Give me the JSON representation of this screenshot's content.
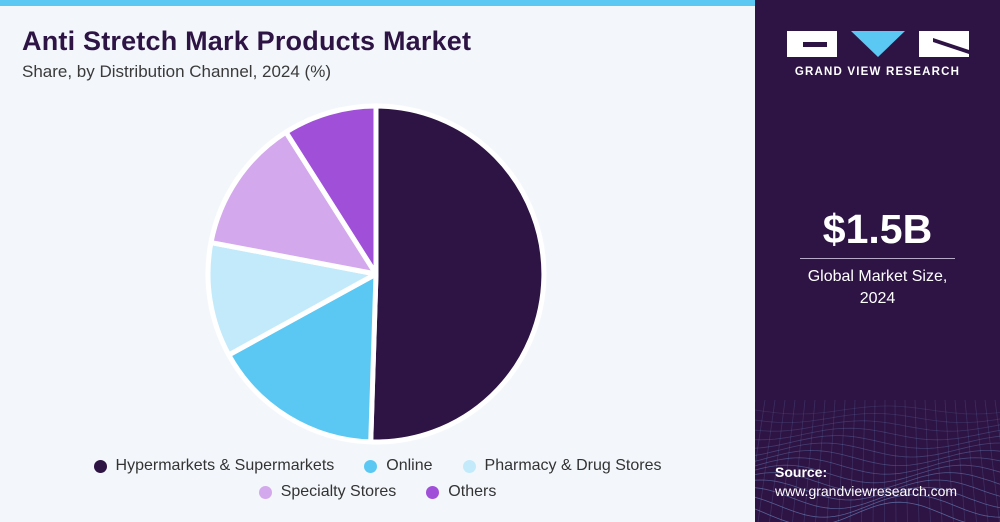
{
  "header": {
    "title": "Anti Stretch Mark Products Market",
    "subtitle": "Share, by Distribution Channel, 2024 (%)"
  },
  "sidebar": {
    "brand": "GRAND VIEW RESEARCH",
    "market_size": "$1.5B",
    "market_label_line1": "Global Market Size,",
    "market_label_line2": "2024",
    "source_label": "Source:",
    "source_url": "www.grandviewresearch.com"
  },
  "colors": {
    "brand_dark": "#2e1444",
    "accent_blue": "#5bc8f4"
  },
  "chart_data": {
    "type": "pie",
    "title": "Anti Stretch Mark Products Market",
    "subtitle": "Share, by Distribution Channel, 2024 (%)",
    "legend_position": "bottom",
    "slices": [
      {
        "name": "Hypermarkets & Supermarkets",
        "value": 50.5,
        "color": "#2e1444"
      },
      {
        "name": "Online",
        "value": 16.5,
        "color": "#5bc8f4"
      },
      {
        "name": "Pharmacy & Drug Stores",
        "value": 11.0,
        "color": "#c3eafb"
      },
      {
        "name": "Specialty Stores",
        "value": 13.0,
        "color": "#d4a8ec"
      },
      {
        "name": "Others",
        "value": 9.0,
        "color": "#a050d8"
      }
    ]
  }
}
